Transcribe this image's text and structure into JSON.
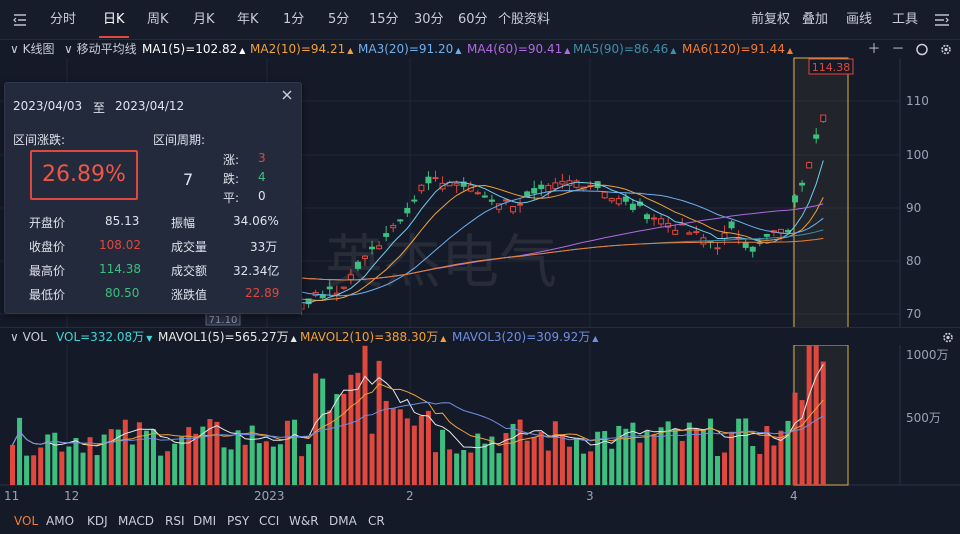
{
  "topbar": {
    "tabs": [
      {
        "label": "分时",
        "x": 50
      },
      {
        "label": "日K",
        "x": 103,
        "active": true
      },
      {
        "label": "周K",
        "x": 147
      },
      {
        "label": "月K",
        "x": 193
      },
      {
        "label": "年K",
        "x": 237
      },
      {
        "label": "1分",
        "x": 283
      },
      {
        "label": "5分",
        "x": 328
      },
      {
        "label": "15分",
        "x": 369
      },
      {
        "label": "30分",
        "x": 414
      },
      {
        "label": "60分",
        "x": 458
      },
      {
        "label": "个股资料",
        "x": 498
      }
    ],
    "right": [
      {
        "label": "前复权",
        "x": 751
      },
      {
        "label": "叠加",
        "x": 802
      },
      {
        "label": "画线",
        "x": 846
      },
      {
        "label": "工具",
        "x": 892
      }
    ]
  },
  "ma_bar": {
    "kline_label": "K线图",
    "ma_label": "移动平均线",
    "items": [
      {
        "text": "MA1(5)=102.82",
        "color": "#ffffff"
      },
      {
        "text": "MA2(10)=94.21",
        "color": "#f0a13a"
      },
      {
        "text": "MA3(20)=91.20",
        "color": "#6fb0ef"
      },
      {
        "text": "MA4(60)=90.41",
        "color": "#b169e0"
      },
      {
        "text": "MA5(90)=86.46",
        "color": "#3d8fa8"
      },
      {
        "text": "MA6(120)=91.44",
        "color": "#ef7d35"
      }
    ]
  },
  "vol_bar": {
    "label": "VOL",
    "items": [
      {
        "text": "VOL=332.08万",
        "color": "#3fd6d6"
      },
      {
        "text": "MAVOL1(5)=565.27万",
        "color": "#e8e8e8"
      },
      {
        "text": "MAVOL2(10)=388.30万",
        "color": "#f0a13a"
      },
      {
        "text": "MAVOL3(20)=309.92万",
        "color": "#6f8fe0"
      }
    ]
  },
  "price_axis": [
    "110",
    "100",
    "90",
    "80",
    "70"
  ],
  "volume_axis": [
    "1000万",
    "500万"
  ],
  "x_axis": [
    "11",
    "12",
    "2023",
    "2",
    "3",
    "4"
  ],
  "markers": {
    "high": "114.38",
    "low": "71.10"
  },
  "watermark": "英杰电气",
  "bottom_tabs": [
    "VOL",
    "AMO",
    "KDJ",
    "MACD",
    "RSI",
    "DMI",
    "PSY",
    "CCI",
    "W&R",
    "DMA",
    "CR"
  ],
  "popup": {
    "date_from": "2023/04/03",
    "date_sep": "至",
    "date_to": "2023/04/12",
    "change_label": "区间涨跌:",
    "change_value": "26.89%",
    "period_label": "区间周期:",
    "period_value": "7",
    "up_label": "涨:",
    "up_value": "3",
    "down_label": "跌:",
    "down_value": "4",
    "flat_label": "平:",
    "flat_value": "0",
    "open_label": "开盘价",
    "open_value": "85.13",
    "amplitude_label": "振幅",
    "amplitude_value": "34.06%",
    "close_label": "收盘价",
    "close_value": "108.02",
    "volume_label": "成交量",
    "volume_value": "33万",
    "high_label": "最高价",
    "high_value": "114.38",
    "amount_label": "成交额",
    "amount_value": "32.34亿",
    "low_label": "最低价",
    "low_value": "80.50",
    "rise_label": "涨跌值",
    "rise_value": "22.89"
  },
  "colors": {
    "up": "#e0483d",
    "down": "#3fbf7f",
    "bg": "#151a28"
  }
}
